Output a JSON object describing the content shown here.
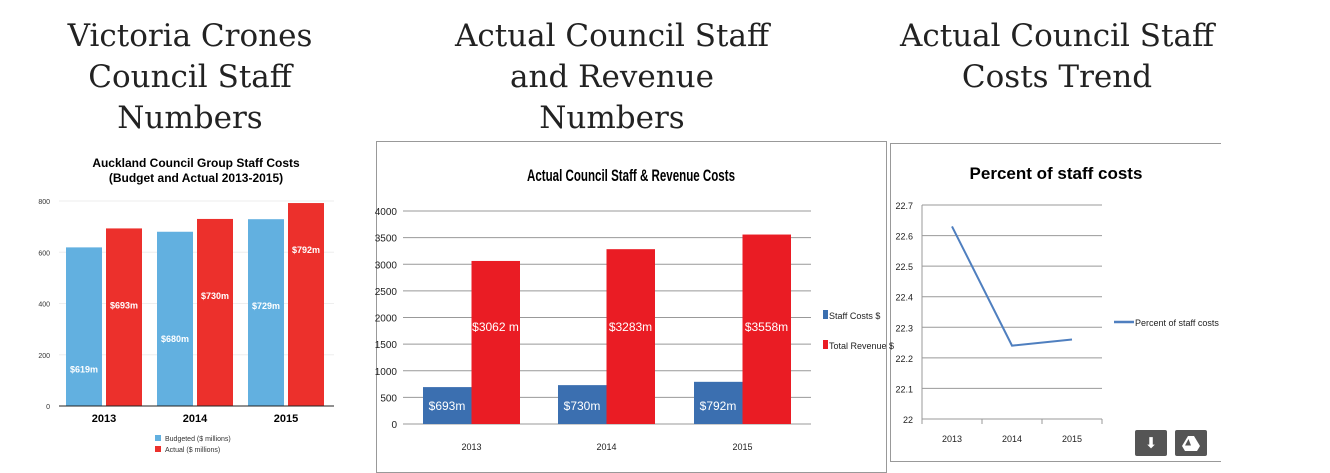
{
  "headings": [
    [
      "Victoria Crones",
      "Council Staff",
      "Numbers"
    ],
    [
      "Actual Council Staff",
      "and Revenue",
      "Numbers"
    ],
    [
      "Actual Council Staff",
      "Costs Trend"
    ]
  ],
  "buttons": {
    "download_icon": "download-icon",
    "drive_icon": "google-drive-icon"
  },
  "chart_data": [
    {
      "type": "bar",
      "title": "Auckland Council Group Staff Costs",
      "subtitle": "(Budget and Actual 2013-2015)",
      "categories": [
        "2013",
        "2014",
        "2015"
      ],
      "yticks": [
        "0",
        "200",
        "400",
        "600",
        "800"
      ],
      "ylim": [
        0,
        800
      ],
      "series": [
        {
          "name": "Budgeted ($ millions)",
          "color": "#62b0e0",
          "values": [
            619,
            680,
            729
          ],
          "labels": [
            "$619m",
            "$680m",
            "$729m"
          ]
        },
        {
          "name": "Actual ($ millions)",
          "color": "#ec302c",
          "values": [
            693,
            730,
            792
          ],
          "labels": [
            "$693m",
            "$730m",
            "$792m"
          ]
        }
      ],
      "legend": "bottom"
    },
    {
      "type": "bar",
      "title": "Actual Council Staff & Revenue Costs",
      "categories": [
        "2013",
        "2014",
        "2015"
      ],
      "yticks": [
        "0",
        "500",
        "1000",
        "1500",
        "2000",
        "2500",
        "3000",
        "3500",
        "4000"
      ],
      "ylim": [
        0,
        4000
      ],
      "series": [
        {
          "name": "Staff Costs $",
          "color": "#3b6fb0",
          "values": [
            693,
            730,
            792
          ],
          "labels": [
            "$693m",
            "$730m",
            "$792m"
          ]
        },
        {
          "name": "Total Revenue $",
          "color": "#ea1c24",
          "values": [
            3062,
            3283,
            3558
          ],
          "labels": [
            "$3062 m",
            "$3283m",
            "$3558m"
          ]
        }
      ],
      "legend": "right"
    },
    {
      "type": "line",
      "title": "Percent of staff costs",
      "categories": [
        "2013",
        "2014",
        "2015"
      ],
      "yticks": [
        "22",
        "22.1",
        "22.2",
        "22.3",
        "22.4",
        "22.5",
        "22.6",
        "22.7"
      ],
      "ylim": [
        22,
        22.7
      ],
      "series": [
        {
          "name": "Percent of staff costs",
          "color": "#4f7fbf",
          "values": [
            22.63,
            22.24,
            22.26
          ]
        }
      ],
      "legend": "right"
    }
  ]
}
